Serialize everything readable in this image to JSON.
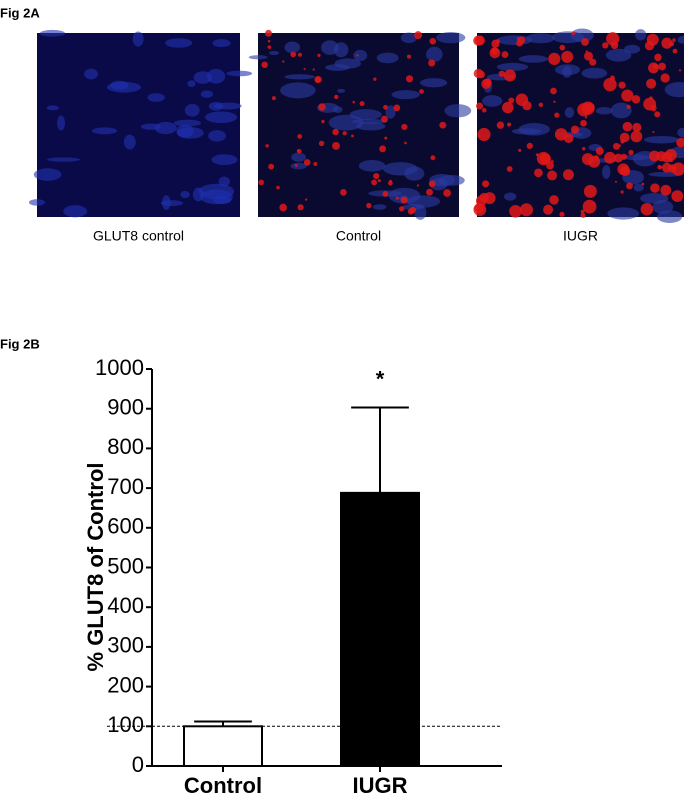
{
  "panel_labels": [
    "Fig 2A",
    "Fig 2B"
  ],
  "images": [
    {
      "caption": "GLUT8 control"
    },
    {
      "caption": "Control"
    },
    {
      "caption": "IUGR"
    }
  ],
  "chart_data": {
    "type": "bar",
    "ylabel": "% GLUT8 of Control",
    "categories": [
      "Control",
      "IUGR"
    ],
    "values": [
      100,
      688
    ],
    "errors": [
      12,
      215
    ],
    "colors": [
      "#ffffff",
      "#000000"
    ],
    "annotations": [
      null,
      "*"
    ],
    "reference_line": 100,
    "ylim": [
      0,
      1000
    ],
    "yticks": [
      0,
      100,
      200,
      300,
      400,
      500,
      600,
      700,
      800,
      900,
      1000
    ]
  }
}
